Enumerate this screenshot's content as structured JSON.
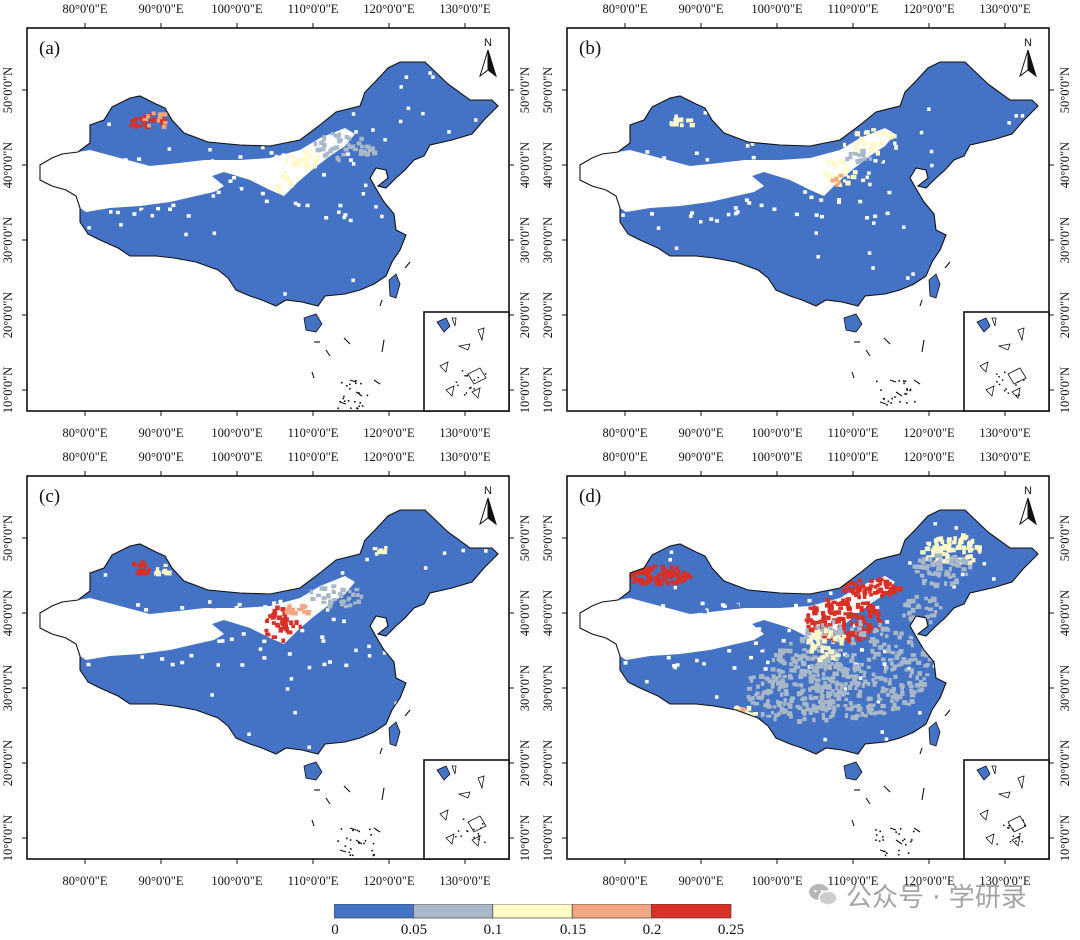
{
  "figure": {
    "panels": [
      {
        "label": "(a)",
        "intensity": "low"
      },
      {
        "label": "(b)",
        "intensity": "lowest"
      },
      {
        "label": "(c)",
        "intensity": "medium"
      },
      {
        "label": "(d)",
        "intensity": "high"
      }
    ],
    "lon_ticks": [
      "80°0'0\"E",
      "90°0'0\"E",
      "100°0'0\"E",
      "110°0'0\"E",
      "120°0'0\"E",
      "130°0'0\"E"
    ],
    "lat_ticks": [
      "50°0'0\"N",
      "40°0'0\"N",
      "30°0'0\"N",
      "20°0'0\"N",
      "10°0'0\"N"
    ],
    "north_label": "N"
  },
  "legend": {
    "bins": [
      {
        "color": "#4472c4"
      },
      {
        "color": "#a9b8c8"
      },
      {
        "color": "#fffbc8"
      },
      {
        "color": "#f4a582"
      },
      {
        "color": "#d73027"
      }
    ],
    "labels": [
      "0",
      "0.05",
      "0.1",
      "0.15",
      "0.2",
      "0.25"
    ]
  },
  "watermark": {
    "text": "公众号 · 学研录",
    "icon": "wechat-icon"
  },
  "colors": {
    "base": "#4472c4",
    "desert": "#ffffff",
    "border": "#111111"
  }
}
